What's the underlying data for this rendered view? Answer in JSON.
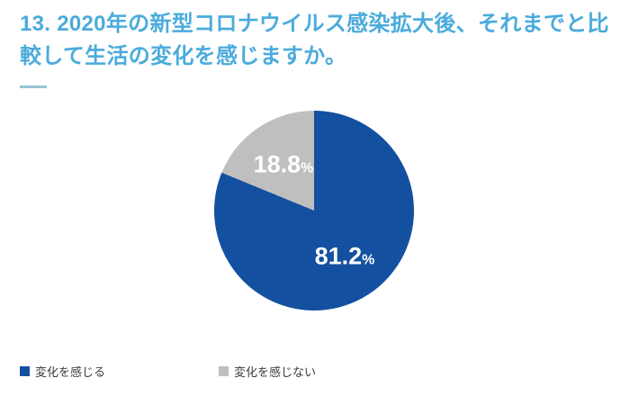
{
  "header": {
    "title": "13. 2020年の新型コロナウイルス感染拡大後、それまでと比較して生活の変化を感じますか。",
    "title_color": "#4BABDC"
  },
  "chart_data": {
    "type": "pie",
    "title": "13. 2020年の新型コロナウイルス感染拡大後、それまでと比較して生活の変化を感じますか。",
    "labels": [
      "変化を感じる",
      "変化を感じない"
    ],
    "values": [
      81.2,
      18.8
    ],
    "value_unit": "%",
    "data_labels": [
      "81.2%",
      "18.8%"
    ],
    "colors": [
      "#1450A0",
      "#BFBFBF"
    ],
    "data_label_color": "#FFFFFF",
    "start_angle_deg": 0,
    "direction": "clockwise",
    "legend_position": "bottom-left",
    "grid": false
  },
  "legend": {
    "items": [
      {
        "label": "変化を感じる",
        "color": "#1450A0"
      },
      {
        "label": "変化を感じない",
        "color": "#BFBFBF"
      }
    ]
  }
}
